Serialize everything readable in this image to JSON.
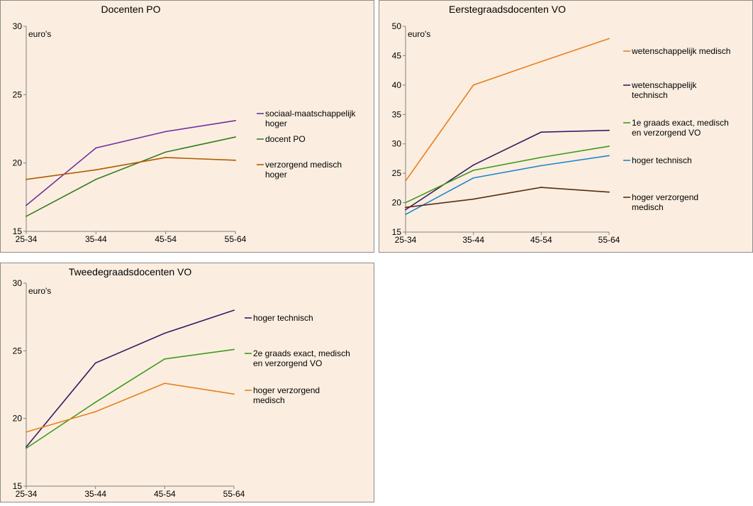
{
  "chart_data": [
    {
      "type": "line",
      "title": "Docenten PO",
      "ylabel": "euro's",
      "categories": [
        "25-34",
        "35-44",
        "45-54",
        "55-64"
      ],
      "ylim": [
        15,
        30
      ],
      "yticks": [
        15,
        20,
        25,
        30
      ],
      "grid": false,
      "legend_placement": "right",
      "series": [
        {
          "name": "sociaal-maatschappelijk hoger",
          "legend_lines": [
            "sociaal-maatschappelijk",
            "hoger"
          ],
          "color": "#7030a0",
          "values": [
            16.9,
            21.1,
            22.3,
            23.1
          ]
        },
        {
          "name": "docent PO",
          "legend_lines": [
            "docent PO"
          ],
          "color": "#3a7d22",
          "values": [
            16.1,
            18.8,
            20.8,
            21.9
          ]
        },
        {
          "name": "verzorgend medisch hoger",
          "legend_lines": [
            "verzorgend medisch",
            "hoger"
          ],
          "color": "#b35a00",
          "values": [
            18.8,
            19.5,
            20.4,
            20.2
          ]
        }
      ]
    },
    {
      "type": "line",
      "title": "Eerstegraadsdocenten VO",
      "ylabel": "euro's",
      "categories": [
        "25-34",
        "35-44",
        "45-54",
        "55-64"
      ],
      "ylim": [
        15,
        50
      ],
      "yticks": [
        15,
        20,
        25,
        30,
        35,
        40,
        45,
        50
      ],
      "grid": false,
      "legend_placement": "right",
      "series": [
        {
          "name": "wetenschappelijk medisch",
          "legend_lines": [
            "wetenschappelijk medisch"
          ],
          "color": "#e97f1f",
          "values": [
            23.7,
            40.0,
            44.0,
            47.9
          ]
        },
        {
          "name": "wetenschappelijk technisch",
          "legend_lines": [
            "wetenschappelijk",
            "technisch"
          ],
          "color": "#3c1a64",
          "values": [
            18.8,
            26.4,
            32.0,
            32.3
          ]
        },
        {
          "name": "1e graads exact, medisch en verzorgend VO",
          "legend_lines": [
            "1e graads exact, medisch",
            "en verzorgend VO"
          ],
          "color": "#3f9a1c",
          "values": [
            20.0,
            25.5,
            27.7,
            29.6
          ]
        },
        {
          "name": "hoger technisch",
          "legend_lines": [
            "hoger technisch"
          ],
          "color": "#1e86d0",
          "values": [
            18.0,
            24.2,
            26.3,
            28.0
          ]
        },
        {
          "name": "hoger verzorgend medisch",
          "legend_lines": [
            "hoger verzorgend",
            "medisch"
          ],
          "color": "#5b2b12",
          "values": [
            19.2,
            20.6,
            22.6,
            21.8
          ]
        }
      ]
    },
    {
      "type": "line",
      "title": "Tweedegraadsdocenten VO",
      "ylabel": "euro's",
      "categories": [
        "25-34",
        "35-44",
        "45-54",
        "55-64"
      ],
      "ylim": [
        15,
        30
      ],
      "yticks": [
        15,
        20,
        25,
        30
      ],
      "grid": false,
      "legend_placement": "right",
      "series": [
        {
          "name": "hoger technisch",
          "legend_lines": [
            "hoger technisch"
          ],
          "color": "#3c1a64",
          "values": [
            17.9,
            24.1,
            26.3,
            28.0
          ]
        },
        {
          "name": "2e graads exact, medisch en verzorgend VO",
          "legend_lines": [
            "2e graads exact, medisch",
            "en verzorgend VO"
          ],
          "color": "#3f9a1c",
          "values": [
            17.8,
            21.2,
            24.4,
            25.1
          ]
        },
        {
          "name": "hoger verzorgend medisch",
          "legend_lines": [
            "hoger verzorgend",
            "medisch"
          ],
          "color": "#e97f1f",
          "values": [
            19.0,
            20.5,
            22.6,
            21.8
          ]
        }
      ]
    }
  ]
}
